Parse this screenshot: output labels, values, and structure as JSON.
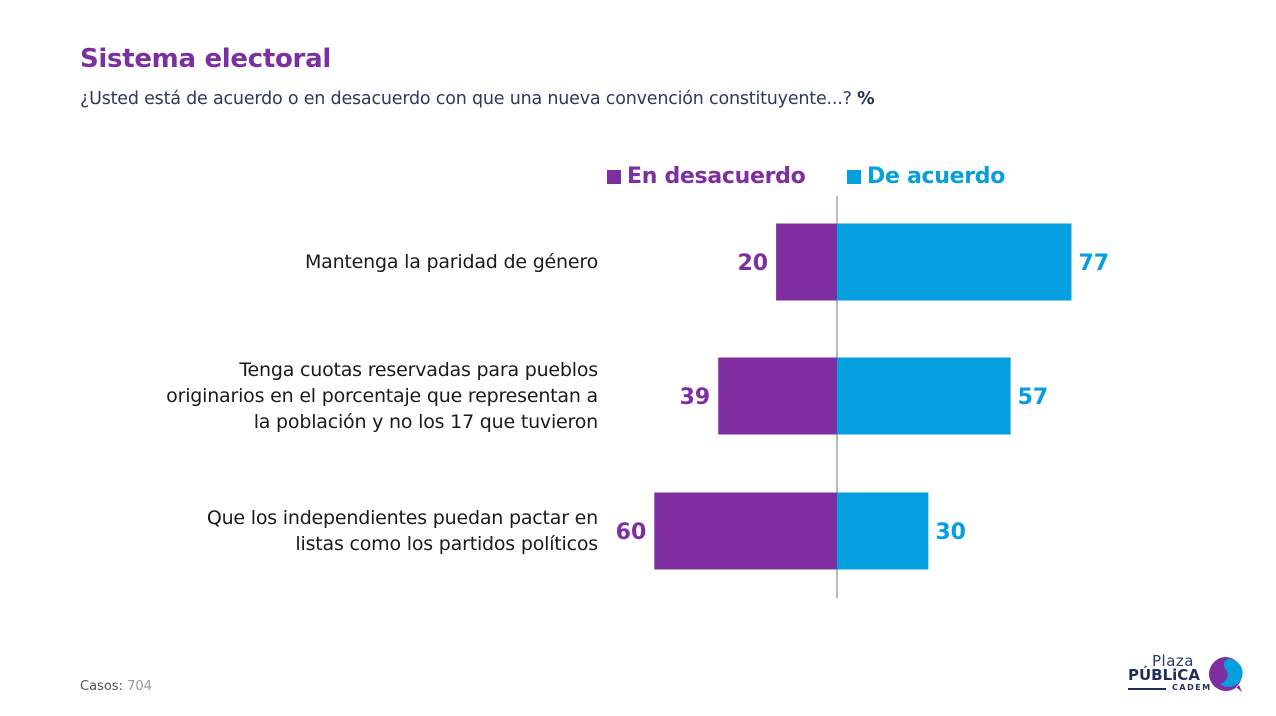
{
  "header": {
    "title": "Sistema electoral",
    "subtitle": "¿Usted está de acuerdo o en desacuerdo con que una nueva convención constituyente...?",
    "unit": "%"
  },
  "colors": {
    "title": "#7b2fa0",
    "disagree": "#7f2ea1",
    "agree": "#039fdf",
    "axis": "#777777"
  },
  "chart_data": {
    "type": "bar",
    "orientation": "horizontal-diverging",
    "title": "Sistema electoral",
    "subtitle": "¿Usted está de acuerdo o en desacuerdo con que una nueva convención constituyente...? %",
    "xlabel": "",
    "ylabel": "",
    "unit": "%",
    "legend_position": "top",
    "grid": false,
    "categories": [
      "Mantenga la paridad de género",
      "Tenga cuotas reservadas para pueblos originarios en el porcentaje que representan a la población y no los 17 que tuvieron",
      "Que los independientes puedan pactar en listas como los partidos políticos"
    ],
    "category_lines": [
      [
        "Mantenga la paridad de género"
      ],
      [
        "Tenga cuotas reservadas para pueblos",
        "originarios en el porcentaje que representan a",
        "la población y no los 17 que tuvieron"
      ],
      [
        "Que los independientes puedan pactar en",
        "listas como los partidos políticos"
      ]
    ],
    "series": [
      {
        "name": "En desacuerdo",
        "direction": "left",
        "color": "#7f2ea1",
        "values": [
          20,
          39,
          60
        ]
      },
      {
        "name": "De acuerdo",
        "direction": "right",
        "color": "#039fdf",
        "values": [
          77,
          57,
          30
        ]
      }
    ],
    "xlim": [
      -80,
      80
    ]
  },
  "legend": {
    "disagree_label": "En desacuerdo",
    "agree_label": "De acuerdo"
  },
  "footer": {
    "casos_label": "Casos",
    "casos_value": "704"
  },
  "logo": {
    "line1": "Plaza",
    "line2": "PÚBLiCA",
    "line3": "CADEM"
  }
}
